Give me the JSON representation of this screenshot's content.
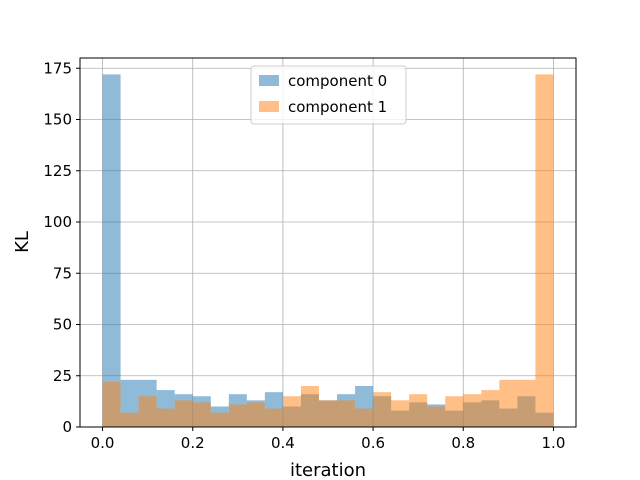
{
  "chart_data": {
    "type": "bar",
    "title": "",
    "xlabel": "iteration",
    "ylabel": "KL",
    "xlim": [
      -0.05,
      1.05
    ],
    "ylim": [
      0,
      180
    ],
    "xticks": [
      0.0,
      0.2,
      0.4,
      0.6,
      0.8,
      1.0
    ],
    "xtick_labels": [
      "0.0",
      "0.2",
      "0.4",
      "0.6",
      "0.8",
      "1.0"
    ],
    "yticks": [
      0,
      25,
      50,
      75,
      100,
      125,
      150,
      175
    ],
    "ytick_labels": [
      "0",
      "25",
      "50",
      "75",
      "100",
      "125",
      "150",
      "175"
    ],
    "grid": true,
    "legend_position": "top-center",
    "bin_start": 0.0,
    "bin_width": 0.04,
    "series": [
      {
        "name": "component 0",
        "color": "#1f77b4",
        "opacity": 0.5,
        "values": [
          172,
          23,
          23,
          18,
          16,
          15,
          10,
          16,
          13,
          17,
          10,
          16,
          13,
          16,
          20,
          15,
          8,
          12,
          11,
          8,
          12,
          13,
          9,
          15,
          7
        ]
      },
      {
        "name": "component 1",
        "color": "#ff7f0e",
        "opacity": 0.5,
        "values": [
          22,
          7,
          15,
          9,
          13,
          12,
          7,
          11,
          12,
          9,
          15,
          20,
          13,
          13,
          9,
          17,
          13,
          16,
          10,
          15,
          16,
          18,
          23,
          23,
          172
        ]
      }
    ]
  }
}
